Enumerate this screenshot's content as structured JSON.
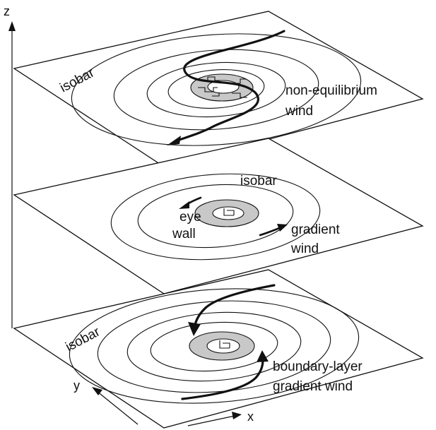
{
  "axes": {
    "z_label": "z",
    "y_label": "y",
    "x_label": "x"
  },
  "top_layer": {
    "isobar_label": "isobar",
    "wind_label_line1": "non-equilibrium",
    "wind_label_line2": "wind"
  },
  "middle_layer": {
    "isobar_label": "isobar",
    "eye_wall_line1": "eye",
    "eye_wall_line2": "wall",
    "wind_label_line1": "gradient",
    "wind_label_line2": "wind"
  },
  "bottom_layer": {
    "isobar_label": "isobar",
    "wind_label_line1": "boundary-layer",
    "wind_label_line2": "gradient wind"
  },
  "colors": {
    "line": "#111111",
    "eye_wall_fill": "#c8c8c8",
    "background": "#ffffff"
  }
}
